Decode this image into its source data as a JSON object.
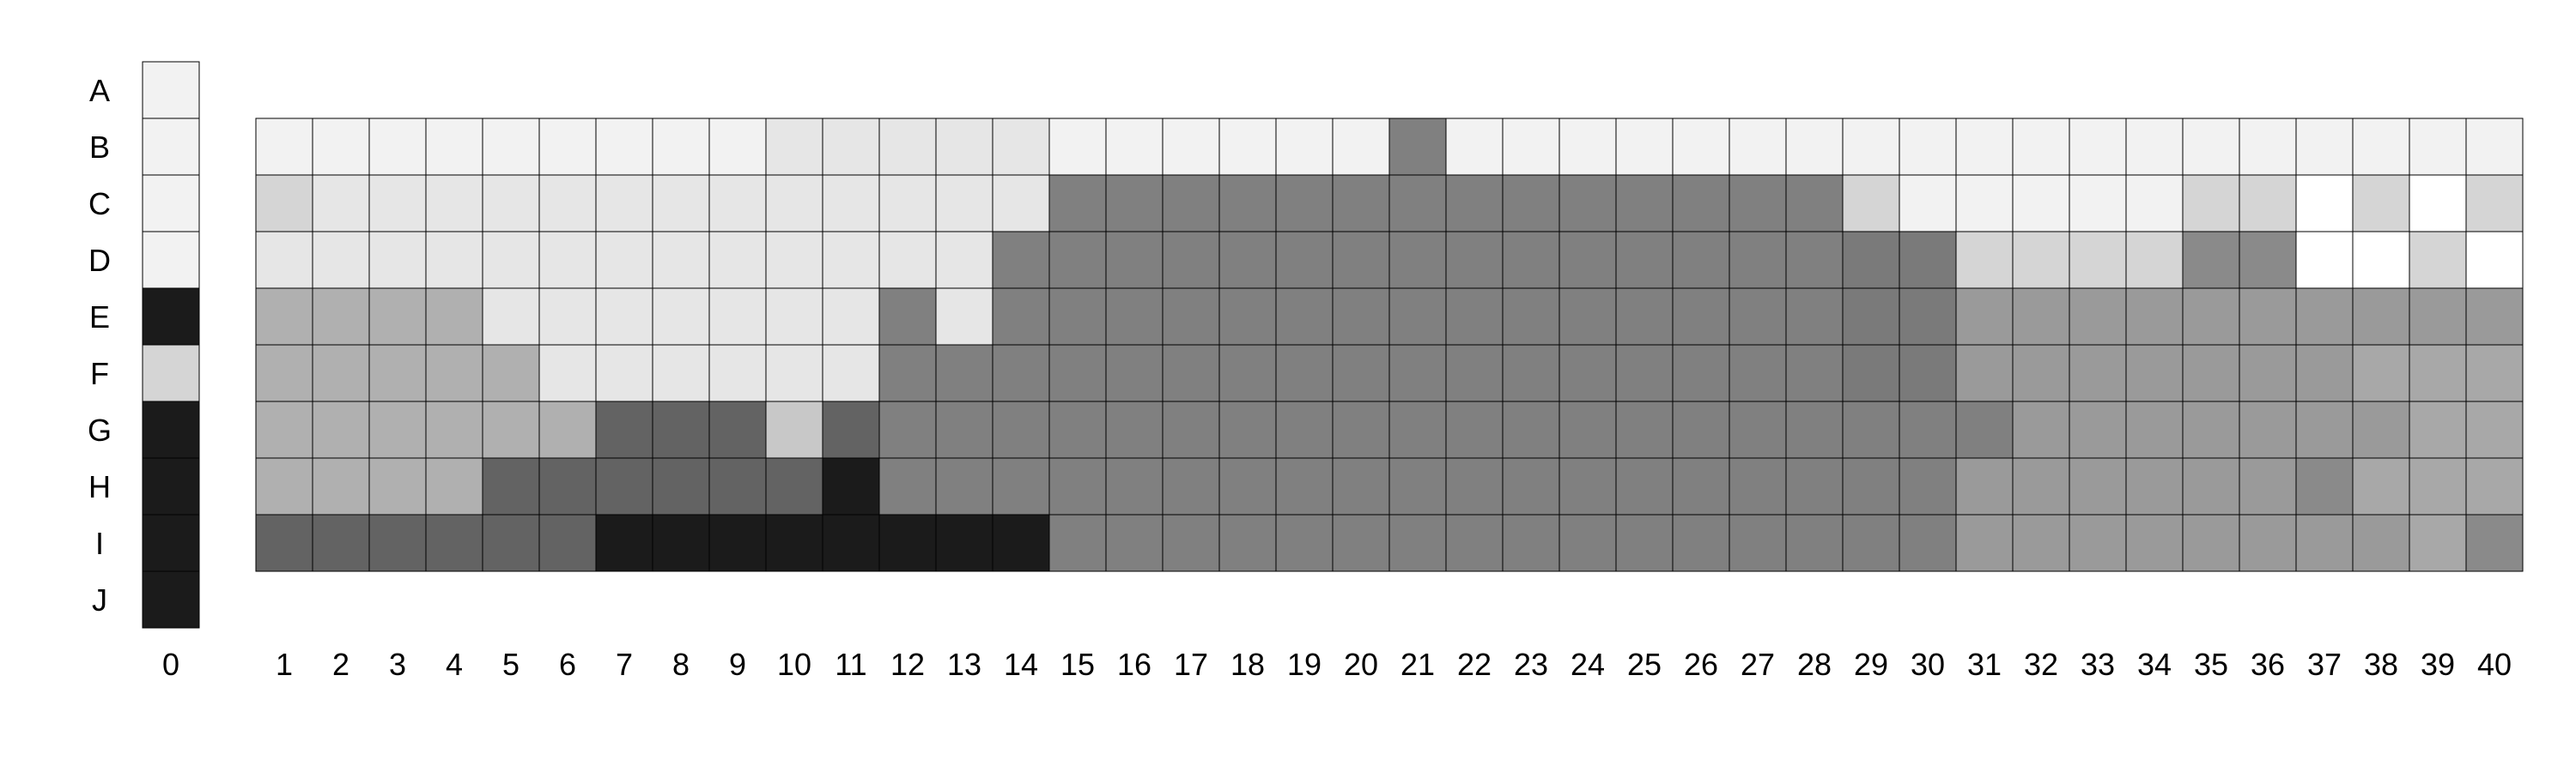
{
  "chart_data": {
    "type": "heatmap",
    "title": "",
    "xlabel": "",
    "ylabel": "",
    "rows": [
      "A",
      "B",
      "C",
      "D",
      "E",
      "F",
      "G",
      "H",
      "I",
      "J"
    ],
    "reference_column": {
      "label": "0",
      "rows": [
        "A",
        "B",
        "C",
        "D",
        "E",
        "F",
        "G",
        "H",
        "I",
        "J"
      ],
      "values": [
        "#f2f2f2",
        "#f2f2f2",
        "#f2f2f2",
        "#f2f2f2",
        "#1b1b1b",
        "#d5d5d5",
        "#1b1b1b",
        "#1b1b1b",
        "#1b1b1b",
        "#1b1b1b"
      ]
    },
    "columns": [
      "1",
      "2",
      "3",
      "4",
      "5",
      "6",
      "7",
      "8",
      "9",
      "10",
      "11",
      "12",
      "13",
      "14",
      "15",
      "16",
      "17",
      "18",
      "19",
      "20",
      "21",
      "22",
      "23",
      "24",
      "25",
      "26",
      "27",
      "28",
      "29",
      "30",
      "31",
      "32",
      "33",
      "34",
      "35",
      "36",
      "37",
      "38",
      "39",
      "40"
    ],
    "grid_rows": [
      "B",
      "C",
      "D",
      "E",
      "F",
      "G",
      "H",
      "I"
    ],
    "legend": {
      "w": "#ffffff",
      "a": "#f2f2f2",
      "b": "#e6e6e6",
      "c": "#d5d5d5",
      "s": "#c8c8c8",
      "d": "#b0b0b0",
      "r": "#a8a8a8",
      "e": "#9a9a9a",
      "g": "#8a8a8a",
      "f": "#808080",
      "h": "#7a7a7a",
      "m": "#636363",
      "k": "#1b1b1b"
    },
    "grid_values": [
      "aaaaaaaaabbbbbaaaaaafaaaaaaaaaaaaaaaaaaa",
      "cbbbbbbbbbbbbbffffffffffffffcaaaaaccwcwc",
      "bbbbbbbbbbbbbfffffffffffffffhhccccggwwcw",
      "ddddbbbbbbbfbfffffffffffffffhheeeeeeeeee",
      "dddddbbbbbbfffffffffffffffffhheeeeeeerrr",
      "ddddddmmmsmffffffffffffffffffffeeeeeeerr",
      "ddddmmmmmmkfffffffffffffffffffeeeeeegrrr",
      "mmmmmmkkkkkkkkffffffffffffffffeeeeeeeerg"
    ]
  }
}
